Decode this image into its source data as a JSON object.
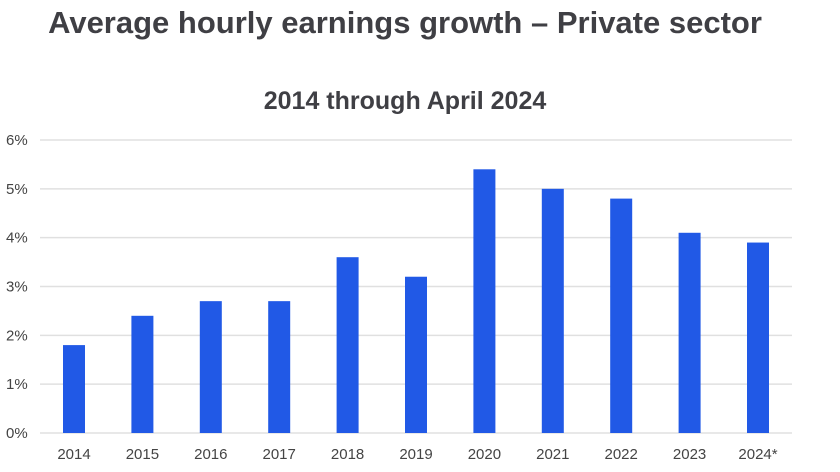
{
  "chart_data": {
    "type": "bar",
    "title": "Average hourly earnings growth – Private sector",
    "subtitle": "2014 through April 2024",
    "xlabel": "",
    "ylabel": "",
    "categories": [
      "2014",
      "2015",
      "2016",
      "2017",
      "2018",
      "2019",
      "2020",
      "2021",
      "2022",
      "2023",
      "2024*"
    ],
    "values": [
      1.8,
      2.4,
      2.7,
      2.7,
      3.6,
      3.2,
      5.4,
      5.0,
      4.8,
      4.1,
      3.9
    ],
    "ylim": [
      0,
      6
    ],
    "yticks": [
      "0%",
      "1%",
      "2%",
      "3%",
      "4%",
      "5%",
      "6%"
    ],
    "grid": true,
    "legend": "none",
    "colors": {
      "bar": "#2159e6",
      "grid": "#e0e0e0",
      "text": "#3f3f44"
    }
  }
}
